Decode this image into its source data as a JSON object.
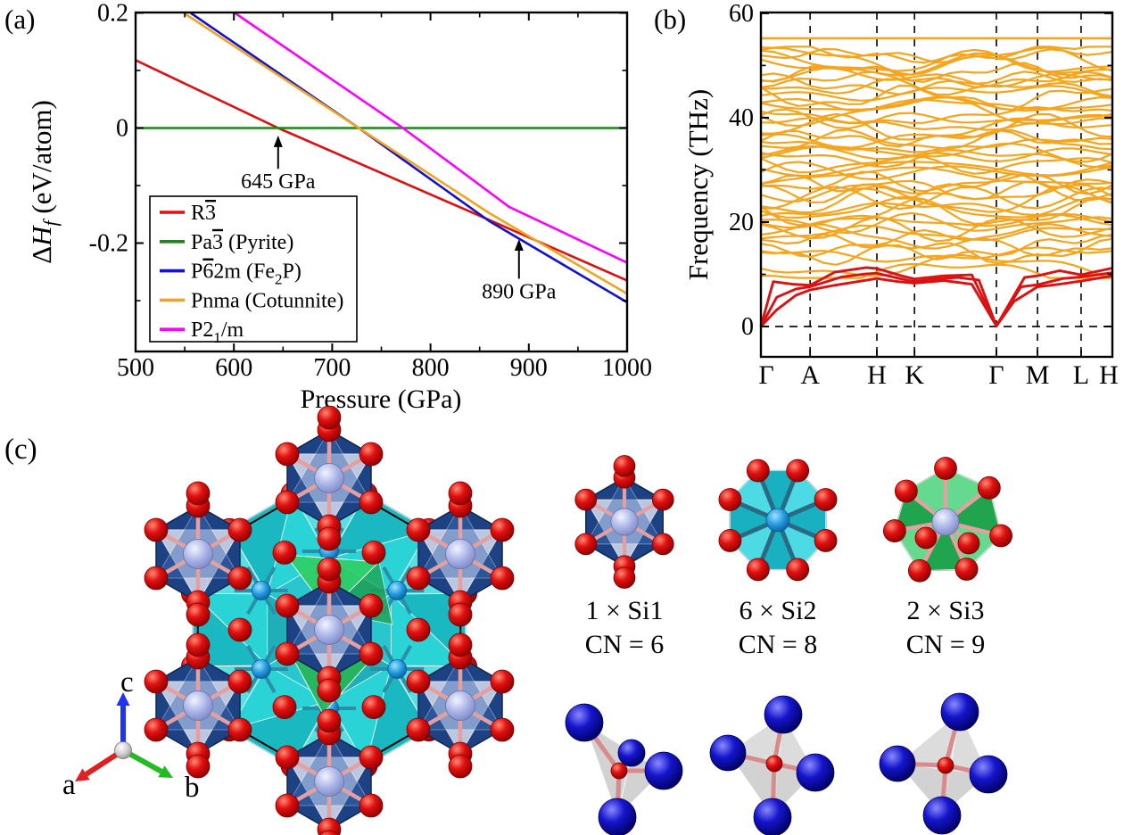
{
  "panel_a": {
    "label": "(a)",
    "xlabel": "Pressure (GPa)",
    "ylabel_parts": [
      {
        "t": "Δ"
      },
      {
        "t": "H",
        "ital": true
      },
      {
        "t": "f",
        "sub": true,
        "ital": true
      },
      {
        "t": " (eV/atom)"
      }
    ],
    "xlim": [
      500,
      1000
    ],
    "ylim": [
      -0.388,
      0.2
    ],
    "x_ticks": [
      {
        "v": 500,
        "label": "500"
      },
      {
        "v": 600,
        "label": "600"
      },
      {
        "v": 700,
        "label": "700"
      },
      {
        "v": 800,
        "label": "800"
      },
      {
        "v": 900,
        "label": "900"
      },
      {
        "v": 1000,
        "label": "1000"
      }
    ],
    "x_minor_ticks": [
      550,
      650,
      750,
      850,
      950
    ],
    "y_ticks": [
      {
        "v": 0.2,
        "label": "0.2"
      },
      {
        "v": 0,
        "label": "0"
      },
      {
        "v": -0.2,
        "label": "-0.2"
      }
    ],
    "y_minor_ticks": [
      0.1,
      -0.1,
      -0.3
    ],
    "chart_data": {
      "type": "line",
      "title": "Relative enthalpy of SiO2 phases vs pressure",
      "xlabel": "Pressure (GPa)",
      "ylabel": "ΔHf (eV/atom)",
      "series": [
        {
          "name": "R-3",
          "color": "#E01010",
          "points": [
            [
              500,
              0.118
            ],
            [
              645,
              0.0
            ],
            [
              860,
              -0.16
            ],
            [
              1000,
              -0.265
            ]
          ]
        },
        {
          "name": "Pa-3 (Pyrite)",
          "color": "#168A16",
          "points": [
            [
              500,
              0.0
            ],
            [
              1000,
              0.0
            ]
          ]
        },
        {
          "name": "P-62m (Fe2P)",
          "color": "#1212CF",
          "points": [
            [
              556,
              0.2
            ],
            [
              727,
              0.0
            ],
            [
              860,
              -0.162
            ],
            [
              1000,
              -0.303
            ]
          ]
        },
        {
          "name": "Pnma (Cotunnite)",
          "color": "#F2A41E",
          "points": [
            [
              549,
              0.2
            ],
            [
              727,
              0.0
            ],
            [
              860,
              -0.148
            ],
            [
              1000,
              -0.288
            ]
          ]
        },
        {
          "name": "P21/m",
          "color": "#FF00FF",
          "points": [
            [
              601,
              0.2
            ],
            [
              772,
              0.0
            ],
            [
              880,
              -0.137
            ],
            [
              1000,
              -0.234
            ]
          ]
        }
      ]
    },
    "legend": [
      {
        "color": "#E01010",
        "parts": [
          {
            "t": "R"
          },
          {
            "t": "3",
            "over": true
          }
        ]
      },
      {
        "color": "#168A16",
        "parts": [
          {
            "t": "Pa"
          },
          {
            "t": "3",
            "over": true
          },
          {
            "t": " (Pyrite)"
          }
        ]
      },
      {
        "color": "#1212CF",
        "parts": [
          {
            "t": "P"
          },
          {
            "t": "6",
            "over": true
          },
          {
            "t": "2m (Fe"
          },
          {
            "t": "2",
            "sub": true
          },
          {
            "t": "P)"
          }
        ]
      },
      {
        "color": "#F2A41E",
        "parts": [
          {
            "t": "Pnma (Cotunnite)"
          }
        ]
      },
      {
        "color": "#FF00FF",
        "parts": [
          {
            "t": "P2"
          },
          {
            "t": "1",
            "sub": true
          },
          {
            "t": "/m"
          }
        ]
      }
    ],
    "annotations": [
      {
        "text": "645 GPa",
        "pressure": 645,
        "tip_dH": -0.013,
        "text_dH": -0.105
      },
      {
        "text": "890 GPa",
        "pressure": 890,
        "tip_dH": -0.193,
        "text_dH": -0.296
      }
    ]
  },
  "panel_b": {
    "label": "(b)",
    "ylabel": "Frequency (THz)",
    "ylim": [
      -5.8,
      60
    ],
    "y_ticks": [
      {
        "v": 0,
        "label": "0"
      },
      {
        "v": 20,
        "label": "20"
      },
      {
        "v": 40,
        "label": "40"
      },
      {
        "v": 60,
        "label": "60"
      }
    ],
    "y_minor_ticks": [
      10,
      30,
      50
    ],
    "kpath": {
      "labels": [
        "Γ",
        "A",
        "H",
        "K",
        "Γ",
        "M",
        "L",
        "H"
      ],
      "fractions": [
        0,
        0.14,
        0.33,
        0.437,
        0.67,
        0.787,
        0.911,
        1.0
      ]
    },
    "chart_data": {
      "type": "line",
      "title": "Phonon dispersion",
      "ylabel": "Frequency (THz)",
      "flat_band_thz": 55.2,
      "orange_bands": {
        "count": 50,
        "min": 12,
        "max": 53,
        "seed": 11,
        "color": "#F6A41C"
      },
      "acoustic_color": "#DD1111",
      "acoustic_bands": [
        [
          [
            0,
            0
          ],
          [
            0.045,
            3.2
          ],
          [
            0.1,
            6.0
          ],
          [
            0.14,
            7.0
          ],
          [
            0.2,
            7.8
          ],
          [
            0.33,
            9.2
          ],
          [
            0.39,
            8.6
          ],
          [
            0.437,
            8.3
          ],
          [
            0.52,
            8.8
          ],
          [
            0.6,
            8.1
          ],
          [
            0.67,
            0.1
          ],
          [
            0.72,
            4.8
          ],
          [
            0.787,
            7.6
          ],
          [
            0.85,
            8.1
          ],
          [
            0.911,
            8.7
          ],
          [
            1,
            9.7
          ]
        ],
        [
          [
            0,
            0
          ],
          [
            0.045,
            5.6
          ],
          [
            0.1,
            7.2
          ],
          [
            0.14,
            7.6
          ],
          [
            0.23,
            9.5
          ],
          [
            0.3,
            10.1
          ],
          [
            0.33,
            10.2
          ],
          [
            0.4,
            9.1
          ],
          [
            0.437,
            8.6
          ],
          [
            0.5,
            9.1
          ],
          [
            0.56,
            9.4
          ],
          [
            0.62,
            8.9
          ],
          [
            0.67,
            0.1
          ],
          [
            0.74,
            7.6
          ],
          [
            0.787,
            8.0
          ],
          [
            0.86,
            9.2
          ],
          [
            0.911,
            9.5
          ],
          [
            1,
            10.3
          ]
        ],
        [
          [
            0,
            0
          ],
          [
            0.035,
            8.6
          ],
          [
            0.09,
            8.1
          ],
          [
            0.14,
            7.9
          ],
          [
            0.21,
            10.4
          ],
          [
            0.3,
            11.3
          ],
          [
            0.33,
            11.1
          ],
          [
            0.4,
            9.7
          ],
          [
            0.437,
            9.1
          ],
          [
            0.52,
            9.7
          ],
          [
            0.6,
            9.9
          ],
          [
            0.67,
            0.1
          ],
          [
            0.75,
            9.4
          ],
          [
            0.787,
            9.7
          ],
          [
            0.85,
            10.7
          ],
          [
            0.911,
            9.9
          ],
          [
            1,
            11.2
          ]
        ]
      ]
    }
  },
  "panel_c": {
    "label": "(c)",
    "sites": [
      {
        "count_label": "1 × Si1",
        "cn_label": "CN = 6",
        "polyhedron_color": "#1C4284"
      },
      {
        "count_label": "6 × Si2",
        "cn_label": "CN = 8",
        "polyhedron_color": "#24C4D4"
      },
      {
        "count_label": "2 × Si3",
        "cn_label": "CN = 9",
        "polyhedron_color": "#2FB55C"
      }
    ],
    "triad": {
      "a": {
        "label": "a",
        "color": "#E02020"
      },
      "b": {
        "label": "b",
        "color": "#22BB22"
      },
      "c": {
        "label": "c",
        "color": "#2233EE"
      }
    },
    "atom_colors": {
      "oxygen": "#D81414",
      "si1_center": "#A9B2E6",
      "si2_center": "#2196DD",
      "blue_atom": "#1515CC",
      "bond": "#E4A0A0",
      "tetra_face": "#CFCFCF",
      "cell_line": "#000000"
    }
  }
}
